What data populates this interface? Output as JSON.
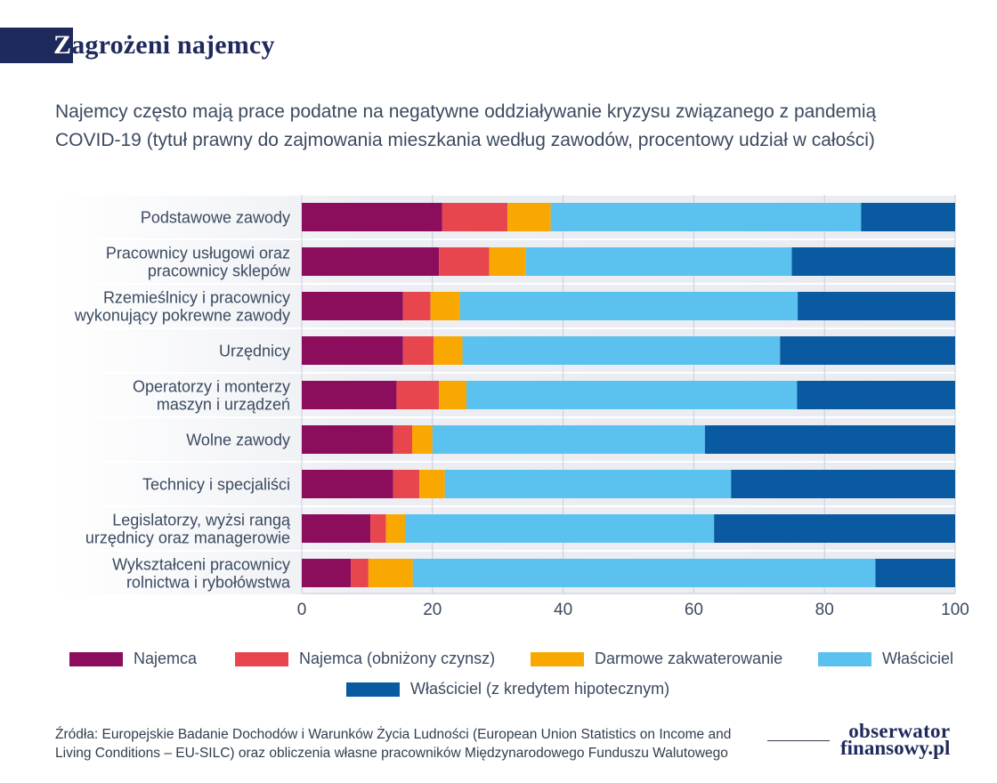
{
  "header": {
    "title_first": "Z",
    "title_rest": "agrożeni najemcy",
    "subtitle_line1": "Najemcy często mają prace podatne na negatywne oddziaływanie kryzysu związanego z pandemią",
    "subtitle_line2": "COVID-19 (tytuł prawny do zajmowania mieszkania według zawodów, procentowy udział w całości)"
  },
  "chart_data": {
    "type": "bar",
    "orientation": "horizontal",
    "stacked": true,
    "categories": [
      [
        "Podstawowe zawody"
      ],
      [
        "Pracownicy usługowi oraz",
        "pracownicy sklepów"
      ],
      [
        "Rzemieślnicy i pracownicy",
        "wykonujący pokrewne zawody"
      ],
      [
        "Urzędnicy"
      ],
      [
        "Operatorzy i monterzy",
        "maszyn i urządzeń"
      ],
      [
        "Wolne zawody"
      ],
      [
        "Technicy i specjaliści"
      ],
      [
        "Legislatorzy, wyżsi rangą",
        "urzędnicy oraz managerowie"
      ],
      [
        "Wykształceni pracownicy",
        "rolnictwa i rybołówstwa"
      ]
    ],
    "series": [
      {
        "name": "Najemca",
        "color": "#8b0d5c",
        "values": [
          21.5,
          21,
          15.5,
          15.5,
          14.5,
          14,
          14,
          10.5,
          7.5
        ]
      },
      {
        "name": "Najemca (obniżony czynsz)",
        "color": "#e8464f",
        "values": [
          10,
          7.7,
          4.2,
          4.7,
          6.5,
          2.9,
          4,
          2.4,
          2.7
        ]
      },
      {
        "name": "Darmowe zakwaterowanie",
        "color": "#f8a800",
        "values": [
          6.6,
          5.6,
          4.5,
          4.4,
          4.2,
          3.1,
          3.9,
          2.9,
          6.8
        ]
      },
      {
        "name": "Właściciel",
        "color": "#5bc2f0",
        "values": [
          47.5,
          40.7,
          51.7,
          48.6,
          50.6,
          41.7,
          43.8,
          47.3,
          70.8
        ]
      },
      {
        "name": "Właściciel (z kredytem hipotecznym)",
        "color": "#0a5aa2",
        "values": [
          14.4,
          25,
          24.1,
          26.8,
          24.2,
          38.3,
          34.3,
          36.9,
          12.2
        ]
      }
    ],
    "xlim": [
      0,
      100
    ],
    "xticks": [
      0,
      20,
      40,
      60,
      80,
      100
    ],
    "grid": true,
    "legend_position": "bottom"
  },
  "footer": {
    "source_line1": "Źródła: Europejskie Badanie Dochodów i Warunków Życia Ludności (European Union Statistics on Income and",
    "source_line2": "Living Conditions – EU-SILC) oraz obliczenia własne pracowników Międzynarodowego Funduszu Walutowego",
    "logo_line1": "obserwator",
    "logo_line2": "finansowy.pl"
  }
}
